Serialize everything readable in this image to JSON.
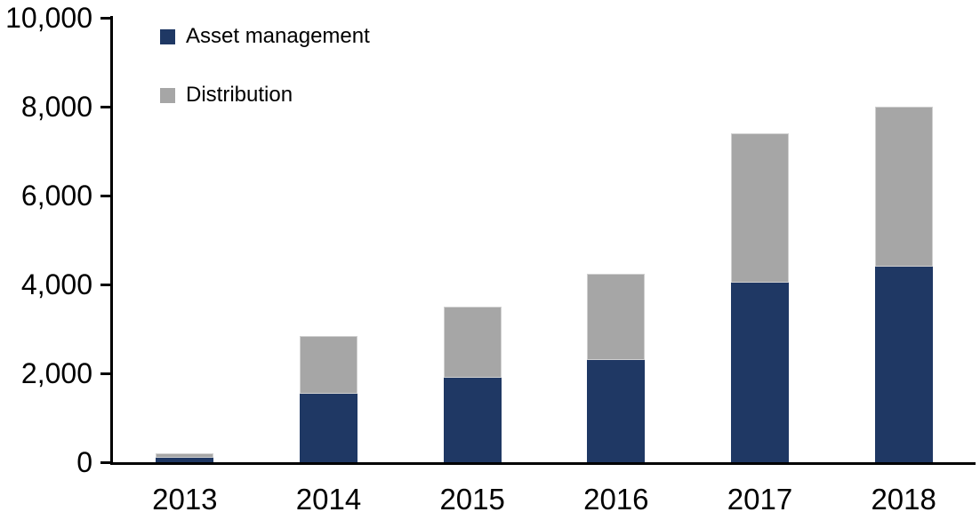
{
  "chart_data": {
    "type": "bar",
    "stacked": true,
    "title": "",
    "xlabel": "",
    "ylabel": "",
    "categories": [
      "2013",
      "2014",
      "2015",
      "2016",
      "2017",
      "2018"
    ],
    "series": [
      {
        "name": "Asset management",
        "color": "#1F3864",
        "values": [
          100,
          1550,
          1900,
          2300,
          4050,
          4400
        ]
      },
      {
        "name": "Distribution",
        "color": "#A6A6A6",
        "values": [
          100,
          1300,
          1600,
          1950,
          3350,
          3600
        ]
      }
    ],
    "totals": [
      200,
      2850,
      3500,
      4250,
      7400,
      8000
    ],
    "ylim": [
      0,
      10000
    ],
    "ytick_interval": 2000,
    "ytick_labels": [
      "0",
      "2,000",
      "4,000",
      "6,000",
      "8,000",
      "10,000"
    ],
    "grid": false,
    "legend_position": "top-left-inside",
    "axis_color": "#000000",
    "background_color": "#FFFFFF"
  }
}
